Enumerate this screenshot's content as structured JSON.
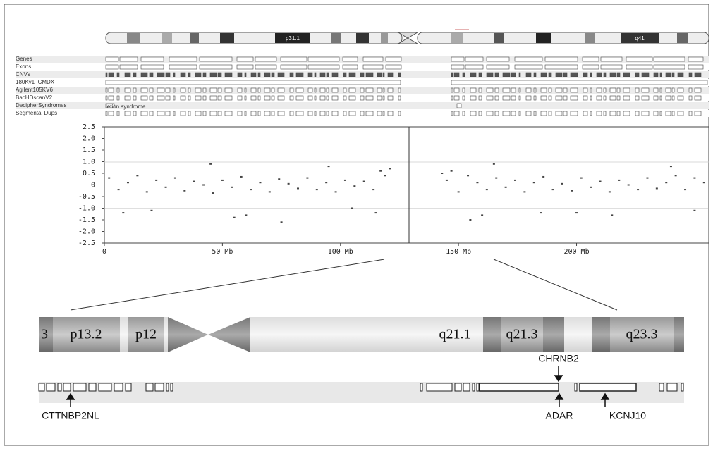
{
  "ideogram": {
    "bands": [
      "p31.1",
      "q41"
    ]
  },
  "tracks": {
    "labels": [
      "Genes",
      "Exons",
      "CNVs",
      "180Kv1_CMDX",
      "Agilent105KV6",
      "BacHDscanV2",
      "DecipherSyndromes",
      "Segmental Dups"
    ],
    "note": "letion syndrome"
  },
  "chart_data": {
    "type": "scatter",
    "color": "#444444",
    "x": [
      2,
      6,
      10,
      14,
      18,
      22,
      26,
      30,
      34,
      38,
      42,
      46,
      50,
      54,
      58,
      62,
      66,
      70,
      74,
      78,
      82,
      86,
      90,
      94,
      98,
      102,
      106,
      110,
      114,
      117,
      119,
      121,
      143,
      145,
      147,
      150,
      154,
      158,
      162,
      166,
      170,
      174,
      178,
      182,
      186,
      190,
      194,
      198,
      202,
      206,
      210,
      214,
      218,
      222,
      226,
      230,
      234,
      238,
      242,
      246,
      250,
      254,
      20,
      45,
      60,
      75,
      95,
      115,
      155,
      165,
      185,
      215,
      240,
      8,
      55,
      105,
      160,
      200,
      250
    ],
    "values": [
      0.3,
      -0.2,
      0.1,
      0.4,
      -0.3,
      0.2,
      -0.1,
      0.3,
      -0.25,
      0.15,
      0,
      -0.35,
      0.2,
      -0.1,
      0.35,
      -0.2,
      0.1,
      -0.3,
      0.25,
      0.05,
      -0.15,
      0.3,
      -0.2,
      0.1,
      -0.3,
      0.2,
      -0.05,
      0.15,
      -0.2,
      0.6,
      0.4,
      0.7,
      0.5,
      0.2,
      0.6,
      -0.3,
      0.4,
      0.1,
      -0.2,
      0.3,
      -0.1,
      0.2,
      -0.3,
      0.1,
      0.35,
      -0.2,
      0.05,
      -0.25,
      0.3,
      -0.1,
      0.15,
      -0.3,
      0.2,
      0,
      -0.2,
      0.3,
      -0.15,
      0.1,
      0.4,
      -0.2,
      0.3,
      0.1,
      -1.1,
      0.9,
      -1.3,
      -1.6,
      0.8,
      -1.2,
      -1.5,
      0.9,
      -1.2,
      -1.3,
      0.8,
      -1.2,
      -1.4,
      -1.0,
      -1.3,
      -1.2,
      -1.1
    ],
    "xlim": [
      0,
      256
    ],
    "ylim": [
      -2.5,
      2.5
    ],
    "xticks": [
      0,
      {
        "value": 50,
        "label": "50 Mb"
      },
      {
        "value": 100,
        "label": "100 Mb"
      },
      {
        "value": 150,
        "label": "150 Mb"
      },
      {
        "value": 200,
        "label": "200 Mb"
      }
    ],
    "yticks": [
      2.5,
      {
        "value": 2,
        "label": "2.0"
      },
      1.5,
      {
        "value": 1,
        "label": "1.0"
      },
      0.5,
      0,
      -0.5,
      {
        "value": -1,
        "label": "-1.0"
      },
      -1.5,
      {
        "value": -2,
        "label": "-2.0"
      },
      -2.5
    ]
  },
  "zoom": {
    "bands": [
      "3",
      "p13.2",
      "p12",
      "q21.1",
      "q21.3",
      "q23.3"
    ],
    "genes": [
      "CHRNB2",
      "CTTNBP2NL",
      "ADAR",
      "KCNJ10"
    ]
  }
}
